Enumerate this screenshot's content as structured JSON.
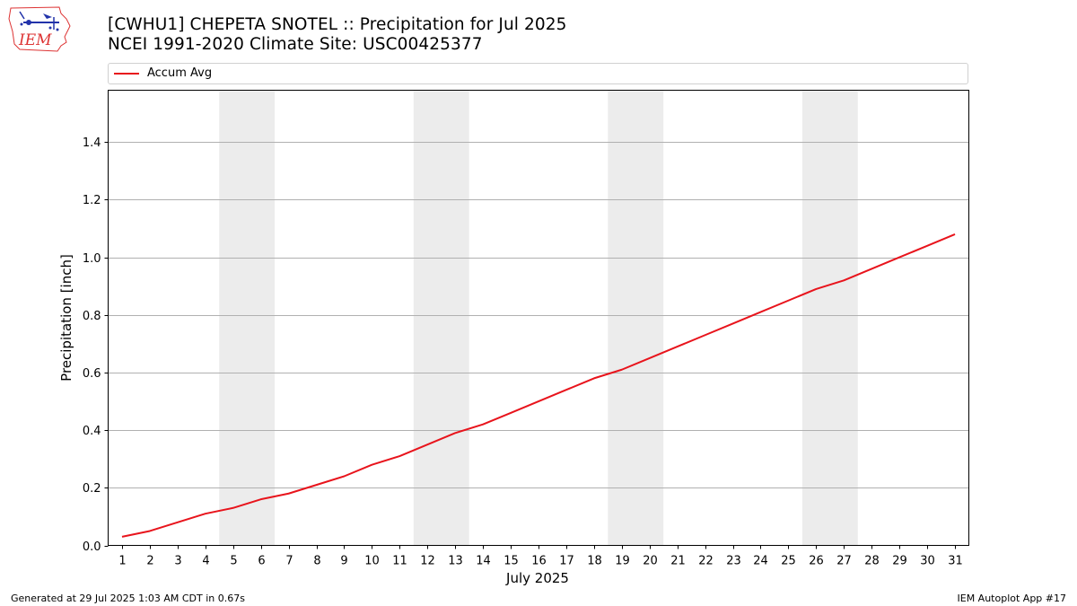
{
  "header": {
    "logo_text": "IEM",
    "title_line1": "[CWHU1] CHEPETA SNOTEL :: Precipitation for Jul 2025",
    "title_line2": "NCEI 1991-2020 Climate Site: USC00425377"
  },
  "footer": {
    "generated": "Generated at 29 Jul 2025 1:03 AM CDT in 0.67s",
    "app": "IEM Autoplot App #17"
  },
  "colors": {
    "series_line": "#e8141c",
    "weekend_band": "#ececec",
    "grid": "#b0b0b0"
  },
  "chart_data": {
    "type": "line",
    "xlabel": "July 2025",
    "ylabel": "Precipitation [inch]",
    "x": [
      1,
      2,
      3,
      4,
      5,
      6,
      7,
      8,
      9,
      10,
      11,
      12,
      13,
      14,
      15,
      16,
      17,
      18,
      19,
      20,
      21,
      22,
      23,
      24,
      25,
      26,
      27,
      28,
      29,
      30,
      31
    ],
    "xticks": [
      "1",
      "2",
      "3",
      "4",
      "5",
      "6",
      "7",
      "8",
      "9",
      "10",
      "11",
      "12",
      "13",
      "14",
      "15",
      "16",
      "17",
      "18",
      "19",
      "20",
      "21",
      "22",
      "23",
      "24",
      "25",
      "26",
      "27",
      "28",
      "29",
      "30",
      "31"
    ],
    "xlim": [
      0.5,
      31.5
    ],
    "ylim": [
      0,
      1.58
    ],
    "yticks": [
      "0.0",
      "0.2",
      "0.4",
      "0.6",
      "0.8",
      "1.0",
      "1.2",
      "1.4"
    ],
    "grid": "y-axis",
    "legend_position": "top, above plot",
    "weekend_shading": [
      [
        5,
        6
      ],
      [
        12,
        13
      ],
      [
        19,
        20
      ],
      [
        26,
        27
      ]
    ],
    "series": [
      {
        "name": "Accum Avg",
        "color": "#e8141c",
        "values": [
          0.03,
          0.05,
          0.08,
          0.11,
          0.13,
          0.16,
          0.18,
          0.21,
          0.24,
          0.28,
          0.31,
          0.35,
          0.39,
          0.42,
          0.46,
          0.5,
          0.54,
          0.58,
          0.61,
          0.65,
          0.69,
          0.73,
          0.77,
          0.81,
          0.85,
          0.89,
          0.92,
          0.96,
          1.0,
          1.04,
          1.08
        ]
      }
    ]
  }
}
